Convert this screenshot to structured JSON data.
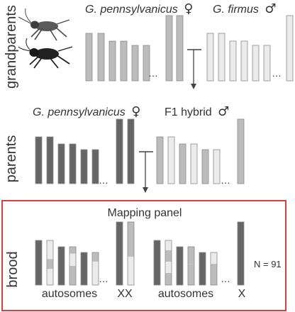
{
  "rows": {
    "grandparents": "grandparents",
    "parents": "parents",
    "brood": "brood"
  },
  "headers": {
    "gp_female_name": "G. pennsylvanicus",
    "gp_female_symbol": "♀",
    "gp_male_name": "G. firmus",
    "gp_male_symbol": "♂",
    "p_female_name": "G. pennsylvanicus",
    "p_female_symbol": "♀",
    "p_male_name": "F1 hybrid",
    "p_male_symbol": "♂"
  },
  "ellipsis": "…",
  "panel": {
    "title": "Mapping panel",
    "autosomes_label": "autosomes",
    "xx_label": "XX",
    "x_label": "X",
    "sample_size": "N = 91"
  },
  "colors": {
    "dark": "#666666",
    "mid": "#bcbcbc",
    "light": "#ebebeb",
    "panel_border": "#d12d2d",
    "text": "#333333"
  },
  "icons": [
    "cricket-icon-top",
    "cricket-icon-bottom"
  ]
}
